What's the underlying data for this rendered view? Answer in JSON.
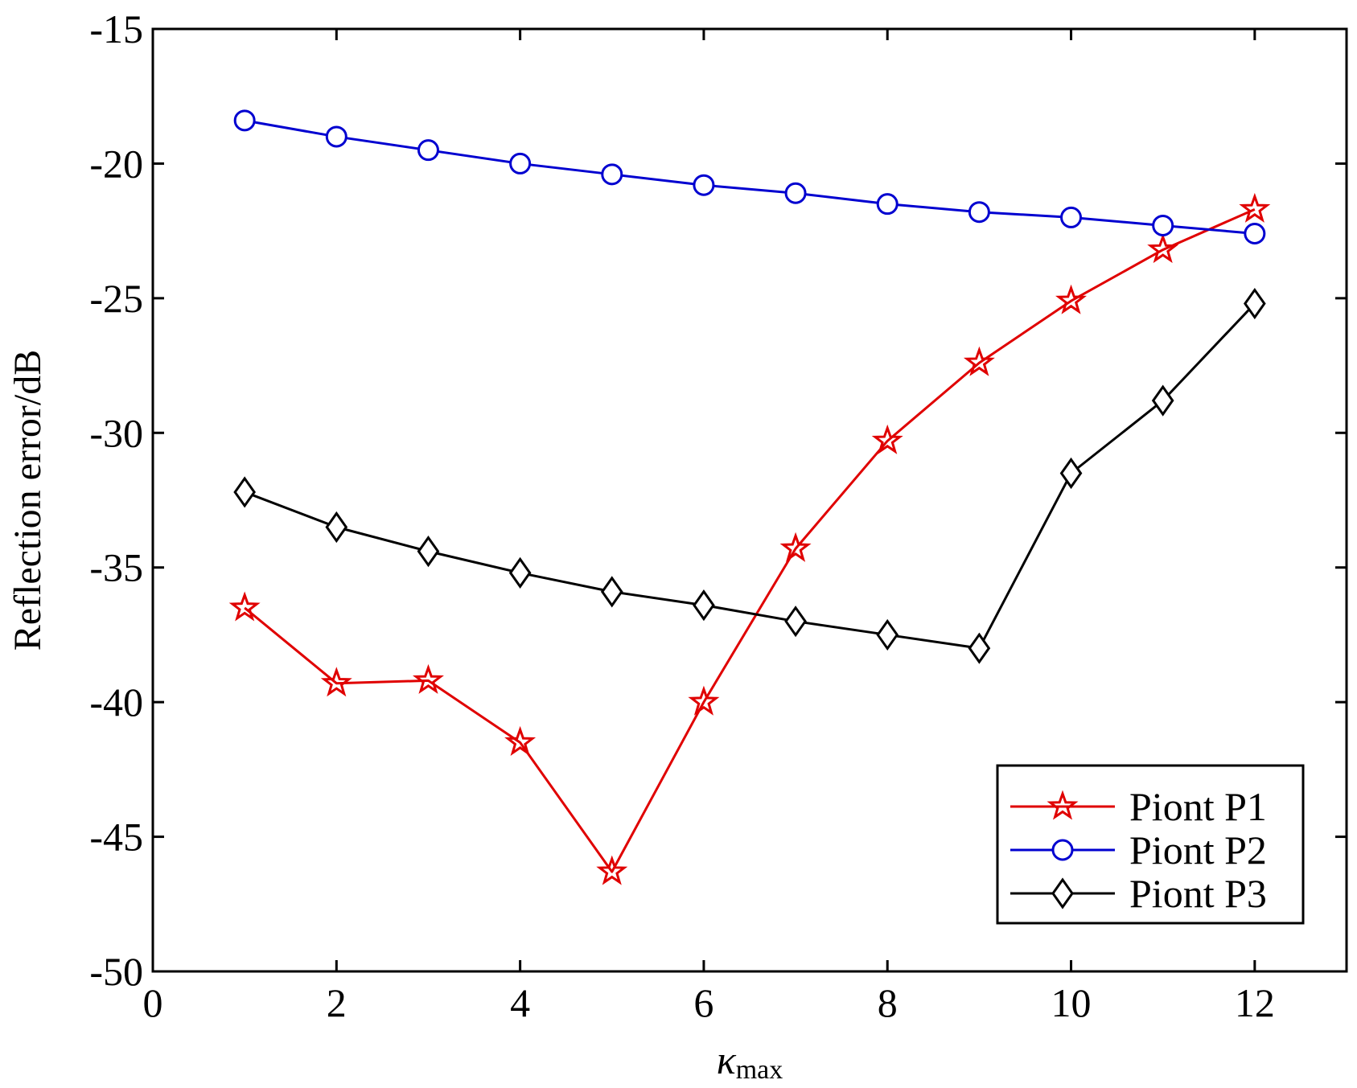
{
  "chart_data": {
    "type": "line",
    "title": "",
    "xlabel": {
      "main": "κ",
      "sub": "max"
    },
    "ylabel": "Reflection error/dB",
    "xlim": [
      0,
      13
    ],
    "ylim": [
      -50,
      -15
    ],
    "xticks": [
      0,
      2,
      4,
      6,
      8,
      10,
      12
    ],
    "yticks": [
      -50,
      -45,
      -40,
      -35,
      -30,
      -25,
      -20,
      -15
    ],
    "xtick_labels": [
      "0",
      "2",
      "4",
      "6",
      "8",
      "10",
      "12"
    ],
    "ytick_labels": [
      "-50",
      "-45",
      "-40",
      "-35",
      "-30",
      "-25",
      "-20",
      "-15"
    ],
    "grid": false,
    "legend_position": "bottom-right",
    "x": [
      1,
      2,
      3,
      4,
      5,
      6,
      7,
      8,
      9,
      10,
      11,
      12
    ],
    "series": [
      {
        "name": "Piont P1",
        "color": "#e00000",
        "marker": "star",
        "values": [
          -36.5,
          -39.3,
          -39.2,
          -41.5,
          -46.3,
          -40.0,
          -34.3,
          -30.3,
          -27.4,
          -25.1,
          -23.2,
          -21.7
        ]
      },
      {
        "name": "Piont P2",
        "color": "#0000d0",
        "marker": "circle",
        "values": [
          -18.4,
          -19.0,
          -19.5,
          -20.0,
          -20.4,
          -20.8,
          -21.1,
          -21.5,
          -21.8,
          -22.0,
          -22.3,
          -22.6
        ]
      },
      {
        "name": "Piont P3",
        "color": "#000000",
        "marker": "diamond",
        "values": [
          -32.2,
          -33.5,
          -34.4,
          -35.2,
          -35.9,
          -36.4,
          -37.0,
          -37.5,
          -38.0,
          -31.5,
          -28.8,
          -25.2
        ]
      }
    ]
  }
}
